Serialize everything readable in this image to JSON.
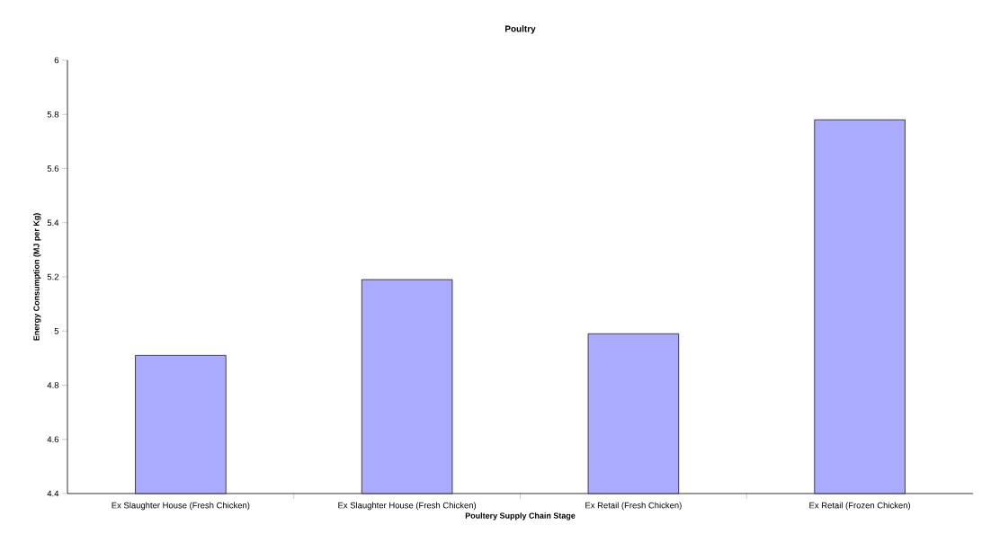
{
  "chart_data": {
    "type": "bar",
    "title": "Poultry",
    "xlabel": "Poultery Supply Chain Stage",
    "ylabel": "Energy Consumption (MJ per Kg)",
    "categories": [
      "Ex Slaughter House (Fresh Chicken)",
      "Ex Slaughter House (Fresh Chicken)",
      "Ex Retail (Fresh Chicken)",
      "Ex Retail (Frozen Chicken)"
    ],
    "values": [
      4.91,
      5.19,
      4.99,
      5.78
    ],
    "color": "#aaaaff",
    "ylim": [
      4.4,
      6
    ],
    "yticks": [
      4.4,
      4.6,
      4.8,
      5,
      5.2,
      5.4,
      5.6,
      5.8,
      6
    ],
    "grid": false
  }
}
